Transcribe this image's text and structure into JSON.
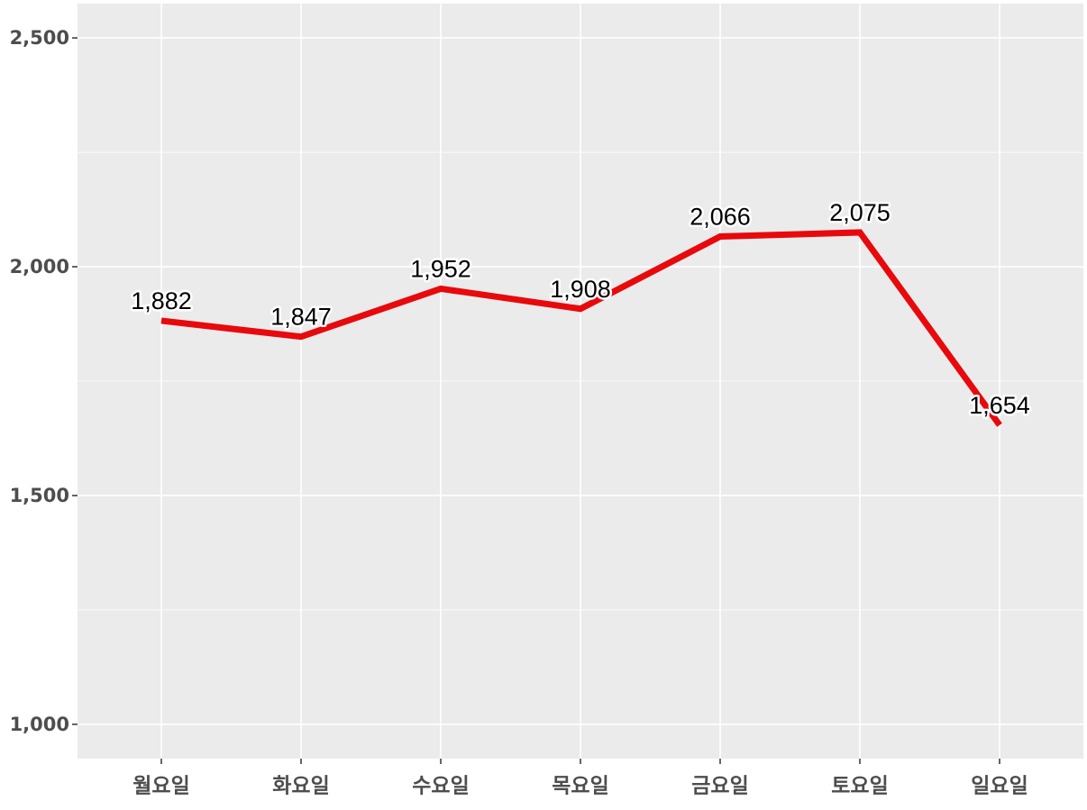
{
  "chart_data": {
    "type": "line",
    "title": "",
    "xlabel": "",
    "ylabel": "",
    "categories": [
      "월요일",
      "화요일",
      "수요일",
      "목요일",
      "금요일",
      "토요일",
      "일요일"
    ],
    "values": [
      1882,
      1847,
      1952,
      1908,
      2066,
      2075,
      1654
    ],
    "data_labels": [
      "1,882",
      "1,847",
      "1,952",
      "1,908",
      "2,066",
      "2,075",
      "1,654"
    ],
    "ylim": [
      925,
      2575
    ],
    "yticks": [
      1000,
      1500,
      2000,
      2500
    ],
    "ytick_labels": [
      "1,000",
      "1,500",
      "2,000",
      "2,500"
    ],
    "grid": true,
    "legend": "none",
    "colors": {
      "line": "#e8090c",
      "panel": "#ebebeb",
      "grid": "#ffffff",
      "axis_text": "#4d4d4d"
    }
  }
}
